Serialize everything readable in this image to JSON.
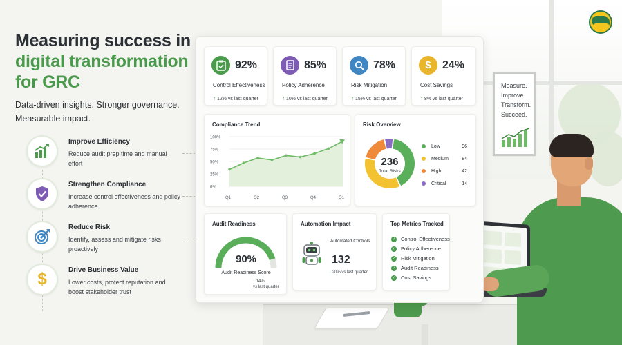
{
  "headline": {
    "line1": "Measuring success in",
    "line2": "digital transformation",
    "line3": "for GRC"
  },
  "subtitle": "Data-driven insights. Stronger governance. Measurable impact.",
  "benefits": [
    {
      "title": "Improve Efficiency",
      "desc": "Reduce audit prep time and manual effort",
      "icon": "chart-growth-icon"
    },
    {
      "title": "Strengthen Compliance",
      "desc": "Increase control effectiveness and policy adherence",
      "icon": "shield-check-icon"
    },
    {
      "title": "Reduce Risk",
      "desc": "Identify, assess and mitigate risks proactively",
      "icon": "target-icon"
    },
    {
      "title": "Drive Business Value",
      "desc": "Lower costs, protect reputation and boost stakeholder trust",
      "icon": "dollar-icon"
    }
  ],
  "kpis": [
    {
      "value": "92%",
      "label": "Control Effectiveness",
      "delta": "12% vs last quarter",
      "color": "#4a9a4b",
      "bg": "#e3f0dc",
      "icon": "clipboard-check-icon"
    },
    {
      "value": "85%",
      "label": "Policy Adherence",
      "delta": "10% vs last quarter",
      "color": "#7e5bb5",
      "bg": "#ece4f6",
      "icon": "document-icon"
    },
    {
      "value": "78%",
      "label": "Risk Mitigation",
      "delta": "15% vs last quarter",
      "color": "#3f86c2",
      "bg": "#dfeaf6",
      "icon": "magnifier-icon"
    },
    {
      "value": "24%",
      "label": "Cost Savings",
      "delta": "8% vs last quarter",
      "color": "#e9b52a",
      "bg": "#fbf0d2",
      "icon": "dollar-icon"
    }
  ],
  "compliance_trend": {
    "title": "Compliance Trend",
    "yticks": [
      "100%",
      "75%",
      "50%",
      "25%",
      "0%"
    ],
    "xticks": [
      "Q1",
      "Q2",
      "Q3",
      "Q4",
      "Q1"
    ]
  },
  "chart_data": {
    "type": "line",
    "title": "Compliance Trend",
    "x": [
      "Q1",
      "",
      "Q2",
      "",
      "Q3",
      "",
      "Q4",
      "",
      "Q1"
    ],
    "values": [
      34,
      47,
      57,
      53,
      62,
      59,
      66,
      76,
      91
    ],
    "ylim": [
      0,
      100
    ],
    "yticks": [
      "0%",
      "25%",
      "50%",
      "75%",
      "100%"
    ],
    "xticks": [
      "Q1",
      "Q2",
      "Q3",
      "Q4",
      "Q1"
    ],
    "color": "#6fba67",
    "fill": true
  },
  "risk_overview": {
    "title": "Risk Overview",
    "total": "236",
    "total_label": "Total Risks",
    "segments": [
      {
        "label": "Low",
        "value": 96,
        "color": "#5ab05a"
      },
      {
        "label": "Medium",
        "value": 84,
        "color": "#f2c230"
      },
      {
        "label": "High",
        "value": 42,
        "color": "#ef8a3a"
      },
      {
        "label": "Critical",
        "value": 14,
        "color": "#8a6cc4"
      }
    ]
  },
  "audit_readiness": {
    "title": "Audit Readiness",
    "value": "90%",
    "fraction": 0.9,
    "label": "Audit Readiness Score",
    "delta": "14%",
    "delta_note": "vs last quarter"
  },
  "automation": {
    "title": "Automation Impact",
    "label": "Automated Controls",
    "value": "132",
    "delta": "20% vs last quarter"
  },
  "top_metrics": {
    "title": "Top Metrics Tracked",
    "items": [
      "Control Effectiveness",
      "Policy Adherence",
      "Risk Mitigation",
      "Audit Readiness",
      "Cost Savings"
    ]
  },
  "wall_poster": [
    "Measure.",
    "Improve.",
    "Transform.",
    "Succeed."
  ]
}
